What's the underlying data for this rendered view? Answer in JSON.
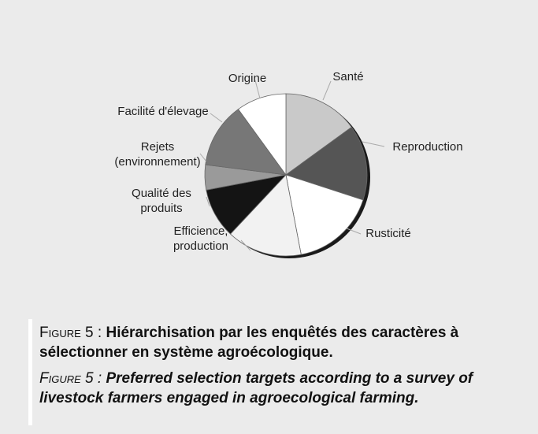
{
  "chart_data": {
    "type": "pie",
    "categories": [
      "Santé",
      "Reproduction",
      "Rusticité",
      "Efficience, production",
      "Qualité des produits",
      "Rejets (environnement)",
      "Facilité d'élevage",
      "Origine"
    ],
    "values": [
      15,
      15,
      17,
      15,
      10,
      5,
      13,
      10
    ],
    "colors": [
      "#c9c9c9",
      "#555555",
      "#ffffff",
      "#f2f2f2",
      "#141414",
      "#9a9a9a",
      "#777777",
      "#ffffff"
    ]
  },
  "caption": {
    "fr_label": "Figure 5 :",
    "fr_text": "Hiérarchisation par les enquêtés des caractères à sélectionner en système agroécologique.",
    "en_label": "Figure 5 :",
    "en_text": "Preferred selection targets according to a survey of livestock farmers engaged in agroecological farming."
  }
}
